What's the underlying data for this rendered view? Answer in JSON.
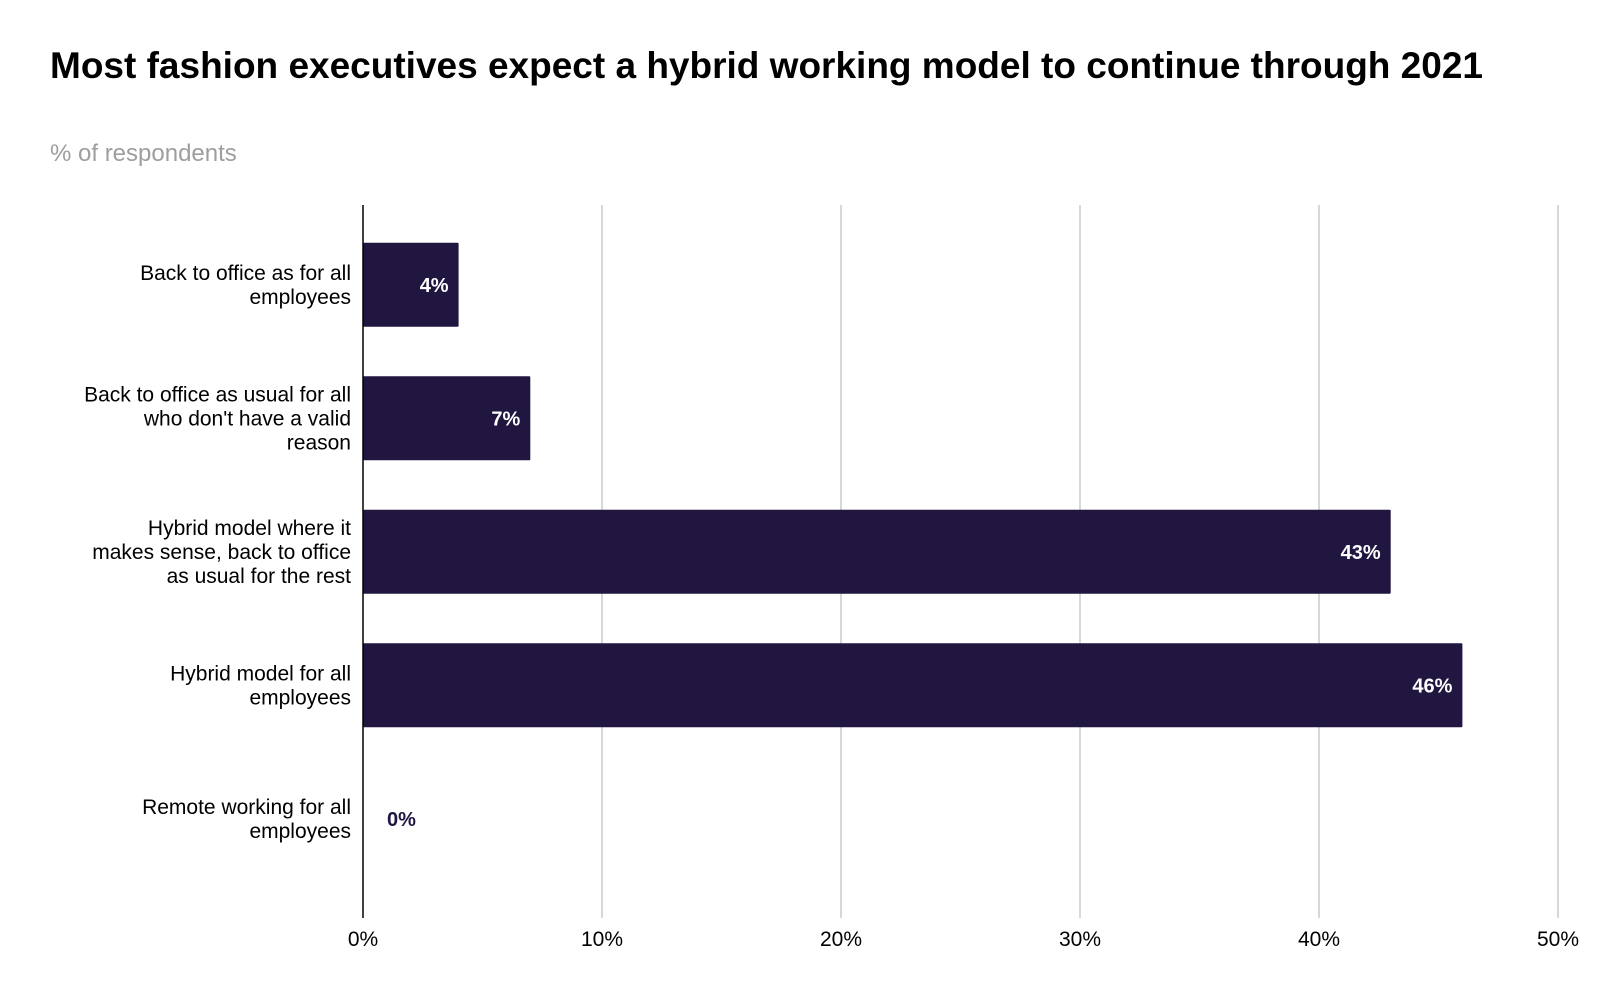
{
  "title": "Most fashion executives expect a hybrid working model to continue through 2021",
  "subtitle": "% of respondents",
  "colors": {
    "bar": "#201640",
    "grid": "#cccccc",
    "axis": "#000000",
    "label_inside": "#ffffff",
    "label_outside": "#201640"
  },
  "chart_data": {
    "type": "bar",
    "orientation": "horizontal",
    "title": "Most fashion executives expect a hybrid working model to continue through 2021",
    "subtitle": "% of respondents",
    "categories": [
      [
        "Back to office as for all",
        "employees"
      ],
      [
        "Back to office as usual for all",
        "who don't have a valid",
        "reason"
      ],
      [
        "Hybrid model where it",
        "makes sense, back to office",
        "as usual for the rest"
      ],
      [
        "Hybrid model for all",
        "employees"
      ],
      [
        "Remote working for all",
        "employees"
      ]
    ],
    "values": [
      4,
      7,
      43,
      46,
      0
    ],
    "data_labels": [
      "4%",
      "7%",
      "43%",
      "46%",
      "0%"
    ],
    "xlim": [
      0,
      50
    ],
    "xticks": [
      0,
      10,
      20,
      30,
      40,
      50
    ],
    "xtick_labels": [
      "0%",
      "10%",
      "20%",
      "30%",
      "40%",
      "50%"
    ],
    "grid": true,
    "legend": "none"
  }
}
